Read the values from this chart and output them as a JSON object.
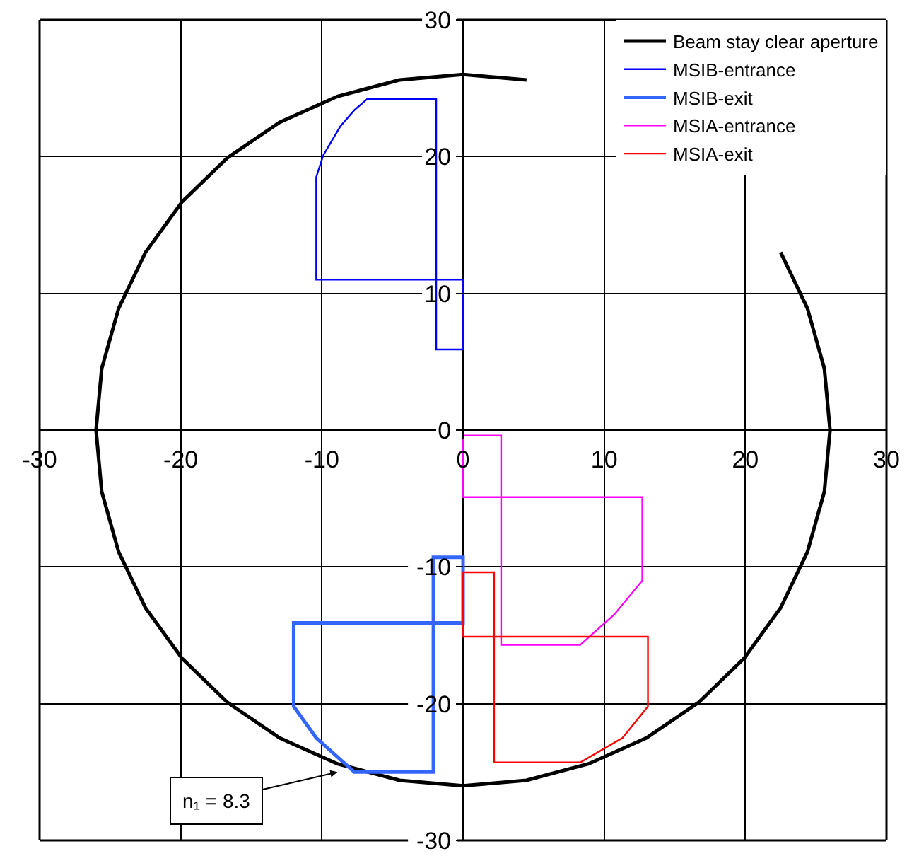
{
  "chart_data": {
    "type": "line",
    "xlim": [
      -30,
      30
    ],
    "ylim": [
      -30,
      30
    ],
    "xticks": [
      -30,
      -20,
      -10,
      0,
      10,
      20,
      30
    ],
    "yticks": [
      -30,
      -20,
      -10,
      0,
      10,
      20,
      30
    ],
    "grid": true,
    "legend": "top right",
    "marker": "none",
    "line_style": "solid",
    "series": [
      {
        "name": "Beam stay clear aperture",
        "color": "#000000",
        "x": [
          26,
          25.6,
          24.4,
          22.5,
          19.9,
          16.7,
          13,
          8.9,
          4.5,
          0,
          -4.5,
          -8.9,
          -13,
          -16.7,
          -19.9,
          -22.5,
          -24.4,
          -25.6,
          -26,
          -25.6,
          -24.4,
          -22.5,
          -19.9,
          -16.7,
          -13,
          -8.9,
          -4.5,
          0,
          4.5,
          8.9,
          13,
          16.7,
          19.9,
          22.5,
          24.4,
          25.6,
          26
        ],
        "values": [
          0,
          4.5,
          8.9,
          13,
          null,
          null,
          null,
          null,
          25.6,
          26,
          25.6,
          24.4,
          22.5,
          19.9,
          16.7,
          13,
          8.9,
          4.5,
          0,
          -4.5,
          -8.9,
          -13,
          -16.7,
          -19.9,
          -22.5,
          -24.4,
          -25.6,
          -26,
          -25.6,
          -24.4,
          -22.5,
          -19.9,
          -16.7,
          -13,
          -8.9,
          -4.5,
          0
        ]
      },
      {
        "name": "MSIB-entrance",
        "color": "#0000ff",
        "x": [
          -4,
          -1.9,
          -1.9,
          0,
          0,
          -10.4,
          -10.4,
          -9.9,
          -8.7,
          -7.7,
          -6.8,
          -3
        ],
        "values": [
          24.2,
          24.2,
          5.9,
          5.9,
          11,
          11,
          18.5,
          20.1,
          22.2,
          23.4,
          24.2,
          24.2
        ]
      },
      {
        "name": "MSIB-exit",
        "color": "#3366ff",
        "x": [
          -6,
          0,
          0,
          -2.1,
          -2.1,
          -7.7,
          -10.4,
          -12,
          -12,
          -5
        ],
        "values": [
          -14.1,
          -14.1,
          -9.3,
          -9.3,
          -25,
          -25,
          -22.5,
          -20.2,
          -14.1,
          -14.1
        ]
      },
      {
        "name": "MSIA-entrance",
        "color": "#ff00ff",
        "x": [
          1,
          2.7,
          2.7,
          8.3,
          10.7,
          12.7,
          12.7,
          0,
          0,
          1.5
        ],
        "values": [
          -0.4,
          -0.4,
          -15.7,
          -15.7,
          -13.5,
          -11,
          -4.9,
          -4.9,
          -0.4,
          -0.4
        ]
      },
      {
        "name": "MSIA-exit",
        "color": "#ff0000",
        "x": [
          1,
          2.2,
          2.2,
          8.3,
          11.3,
          13.1,
          13.1,
          0,
          0,
          1.5
        ],
        "values": [
          -10.4,
          -10.4,
          -24.3,
          -24.3,
          -22.5,
          -20.2,
          -15.1,
          -15.1,
          -10.4,
          -10.4
        ]
      }
    ],
    "annotations": [
      {
        "text": "n₁ = 8.3",
        "x": -8.9,
        "y": -25
      }
    ]
  }
}
